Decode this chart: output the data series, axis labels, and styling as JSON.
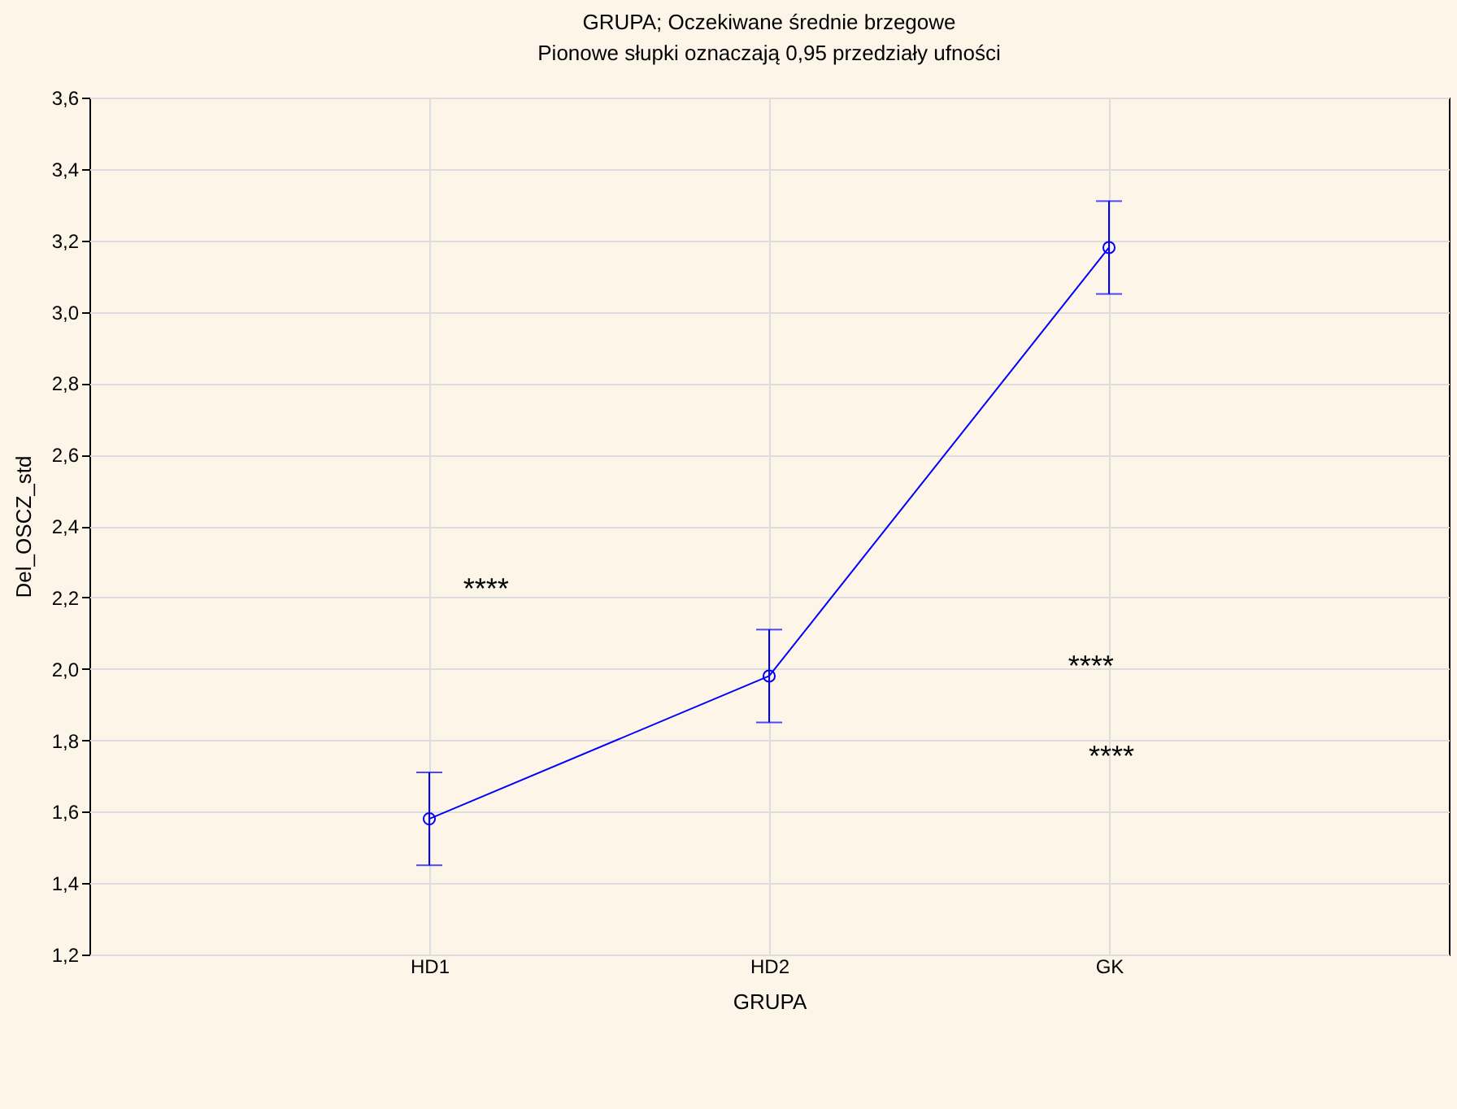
{
  "chart_data": {
    "type": "line",
    "title": "GRUPA; Oczekiwane średnie brzegowe",
    "subtitle": "Pionowe słupki oznaczają 0,95 przedziały ufności",
    "xlabel": "GRUPA",
    "ylabel": "Del_OSCZ_std",
    "categories": [
      "HD1",
      "HD2",
      "GK"
    ],
    "series": [
      {
        "color": "#0000ff",
        "values": [
          1.58,
          1.98,
          3.18
        ],
        "errors": [
          0.13,
          0.13,
          0.13
        ]
      }
    ],
    "ylim": [
      1.2,
      3.6
    ],
    "yticks": [
      {
        "value": 1.2,
        "label": "1,2"
      },
      {
        "value": 1.4,
        "label": "1,4"
      },
      {
        "value": 1.6,
        "label": "1,6"
      },
      {
        "value": 1.8,
        "label": "1,8"
      },
      {
        "value": 2.0,
        "label": "2,0"
      },
      {
        "value": 2.2,
        "label": "2,2"
      },
      {
        "value": 2.4,
        "label": "2,4"
      },
      {
        "value": 2.6,
        "label": "2,6"
      },
      {
        "value": 2.8,
        "label": "2,8"
      },
      {
        "value": 3.0,
        "label": "3,0"
      },
      {
        "value": 3.2,
        "label": "3,2"
      },
      {
        "value": 3.4,
        "label": "3,4"
      },
      {
        "value": 3.6,
        "label": "3,6"
      }
    ],
    "annotations": [
      "****",
      "****",
      "****"
    ],
    "grid": true,
    "marker": "circle",
    "line_style": "solid"
  }
}
